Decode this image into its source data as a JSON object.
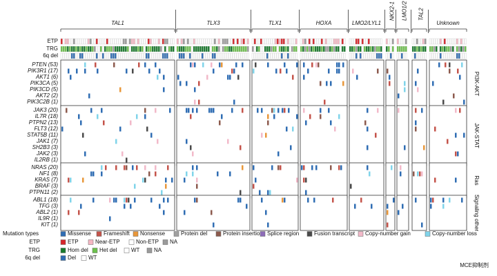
{
  "groups": [
    "TAL1",
    "TLX3",
    "TLX1",
    "HOXA",
    "LMO2/LYL1",
    "NKX2-1",
    "LMO1/2",
    "TAL2",
    "Unknown"
  ],
  "tracks": [
    "ETP",
    "TRG",
    "6q del"
  ],
  "pathways": [
    {
      "name": "PI3K-AKT",
      "genes": [
        "PTEN (53)",
        "PIK3R1 (17)",
        "AKT1 (6)",
        "PIK3CA (5)",
        "PIK3CD (5)",
        "AKT2 (2)",
        "PIK3C2B (1)"
      ]
    },
    {
      "name": "JAK-STAT",
      "genes": [
        "JAK3 (20)",
        "IL7R (18)",
        "PTPN2 (13)",
        "FLT3 (12)",
        "STAT5B (11)",
        "JAK1 (7)",
        "SH2B3 (3)",
        "JAK2 (3)",
        "IL2RB (1)"
      ]
    },
    {
      "name": "Ras",
      "genes": [
        "NRAS (20)",
        "NF1 (8)",
        "KRAS (7)",
        "BRAF (3)",
        "PTPN11 (2)"
      ]
    },
    {
      "name": "Signaling other",
      "genes": [
        "ABL1 (18)",
        "TFG (3)",
        "ABL2 (1)",
        "IL9R (1)",
        "KIT (1)"
      ]
    }
  ],
  "legend": [
    {
      "label": "Mutation types",
      "items": [
        {
          "name": "Missense",
          "color": "#2f6db3"
        },
        {
          "name": "Frameshift",
          "color": "#c4534a"
        },
        {
          "name": "Nonsense",
          "color": "#e8973a"
        },
        {
          "name": "Protein del",
          "color": "#a0a0a0"
        },
        {
          "name": "Protein insertion",
          "color": "#8c5a4d"
        },
        {
          "name": "Splice region",
          "color": "#8d6cb8"
        },
        {
          "name": "Fusion transcript",
          "color": "#4a4a4a"
        },
        {
          "name": "Copy-number gain",
          "color": "#f2b9c9"
        },
        {
          "name": "Copy-number loss",
          "color": "#80d4ea"
        }
      ]
    },
    {
      "label": "ETP",
      "items": [
        {
          "name": "ETP",
          "color": "#d7262b"
        },
        {
          "name": "Near-ETP",
          "color": "#f5b7c3"
        },
        {
          "name": "Non-ETP",
          "color": "#ffffff"
        },
        {
          "name": "NA",
          "color": "#9a9a9a"
        }
      ]
    },
    {
      "label": "TRG",
      "items": [
        {
          "name": "Hom del",
          "color": "#187a2c"
        },
        {
          "name": "Het del",
          "color": "#6cc14c"
        },
        {
          "name": "WT",
          "color": "#ffffff"
        },
        {
          "name": "NA",
          "color": "#9a9a9a"
        }
      ]
    },
    {
      "label": "6q del",
      "items": [
        {
          "name": "Del",
          "color": "#2f6db3"
        },
        {
          "name": "WT",
          "color": "#ffffff"
        }
      ]
    }
  ],
  "watermark": "MCE抑制剂"
}
